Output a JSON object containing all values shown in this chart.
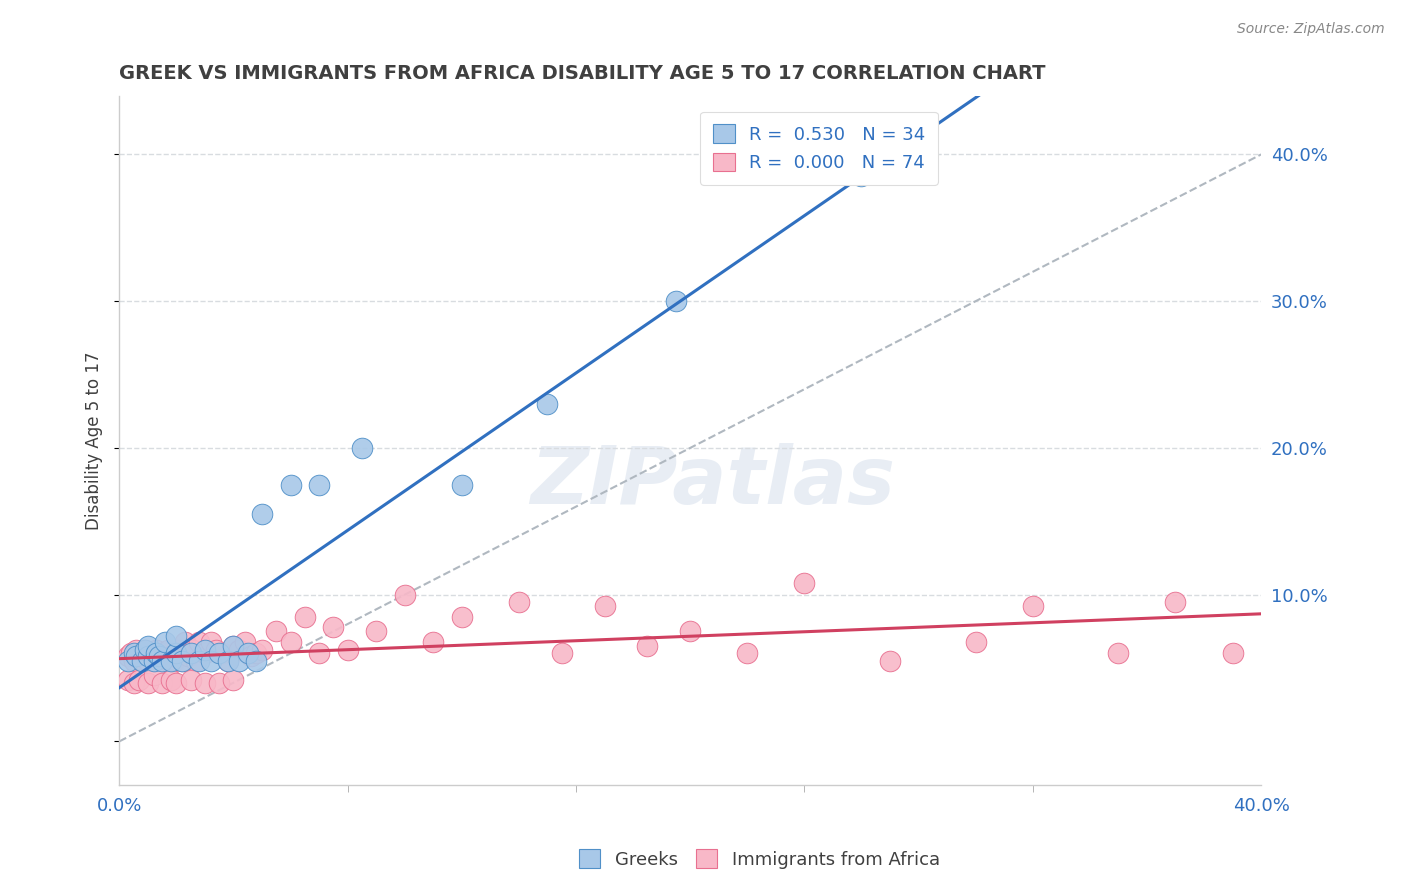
{
  "title": "GREEK VS IMMIGRANTS FROM AFRICA DISABILITY AGE 5 TO 17 CORRELATION CHART",
  "source": "Source: ZipAtlas.com",
  "ylabel": "Disability Age 5 to 17",
  "xlim": [
    0.0,
    0.4
  ],
  "ylim": [
    -0.03,
    0.44
  ],
  "legend_blue_R": "0.530",
  "legend_blue_N": "34",
  "legend_pink_R": "0.000",
  "legend_pink_N": "74",
  "blue_scatter_color": "#a8c8e8",
  "blue_scatter_edge": "#5090c8",
  "pink_scatter_color": "#f8b8c8",
  "pink_scatter_edge": "#e87090",
  "blue_line_color": "#3070c0",
  "pink_line_color": "#d04060",
  "diagonal_color": "#b0b8c0",
  "grid_color": "#d8dce0",
  "background_color": "#ffffff",
  "watermark": "ZIPatlas",
  "title_color": "#404040",
  "axis_color": "#3070c0",
  "greeks_x": [
    0.003,
    0.005,
    0.006,
    0.008,
    0.009,
    0.01,
    0.01,
    0.012,
    0.013,
    0.014,
    0.015,
    0.016,
    0.018,
    0.02,
    0.02,
    0.022,
    0.025,
    0.028,
    0.03,
    0.032,
    0.035,
    0.038,
    0.04,
    0.042,
    0.045,
    0.048,
    0.05,
    0.06,
    0.07,
    0.085,
    0.12,
    0.15,
    0.195,
    0.26
  ],
  "greeks_y": [
    0.055,
    0.06,
    0.058,
    0.055,
    0.062,
    0.058,
    0.065,
    0.055,
    0.06,
    0.058,
    0.055,
    0.068,
    0.055,
    0.06,
    0.072,
    0.055,
    0.06,
    0.055,
    0.062,
    0.055,
    0.06,
    0.055,
    0.065,
    0.055,
    0.06,
    0.055,
    0.155,
    0.175,
    0.175,
    0.2,
    0.175,
    0.23,
    0.3,
    0.385
  ],
  "africa_x": [
    0.003,
    0.004,
    0.005,
    0.006,
    0.007,
    0.008,
    0.008,
    0.009,
    0.01,
    0.01,
    0.011,
    0.012,
    0.013,
    0.014,
    0.015,
    0.016,
    0.017,
    0.018,
    0.019,
    0.02,
    0.021,
    0.022,
    0.023,
    0.024,
    0.025,
    0.026,
    0.027,
    0.028,
    0.03,
    0.032,
    0.034,
    0.036,
    0.038,
    0.04,
    0.042,
    0.044,
    0.046,
    0.048,
    0.05,
    0.055,
    0.06,
    0.065,
    0.07,
    0.075,
    0.08,
    0.09,
    0.1,
    0.11,
    0.12,
    0.14,
    0.155,
    0.17,
    0.185,
    0.2,
    0.22,
    0.24,
    0.27,
    0.3,
    0.32,
    0.35,
    0.37,
    0.39,
    0.003,
    0.005,
    0.007,
    0.01,
    0.012,
    0.015,
    0.018,
    0.02,
    0.025,
    0.03,
    0.035,
    0.04
  ],
  "africa_y": [
    0.058,
    0.06,
    0.055,
    0.062,
    0.058,
    0.055,
    0.06,
    0.062,
    0.055,
    0.06,
    0.058,
    0.055,
    0.062,
    0.058,
    0.055,
    0.06,
    0.062,
    0.058,
    0.055,
    0.06,
    0.062,
    0.055,
    0.068,
    0.058,
    0.06,
    0.062,
    0.055,
    0.068,
    0.06,
    0.068,
    0.062,
    0.06,
    0.055,
    0.065,
    0.062,
    0.068,
    0.058,
    0.06,
    0.062,
    0.075,
    0.068,
    0.085,
    0.06,
    0.078,
    0.062,
    0.075,
    0.1,
    0.068,
    0.085,
    0.095,
    0.06,
    0.092,
    0.065,
    0.075,
    0.06,
    0.108,
    0.055,
    0.068,
    0.092,
    0.06,
    0.095,
    0.06,
    0.042,
    0.04,
    0.042,
    0.04,
    0.045,
    0.04,
    0.042,
    0.04,
    0.042,
    0.04,
    0.04,
    0.042
  ]
}
